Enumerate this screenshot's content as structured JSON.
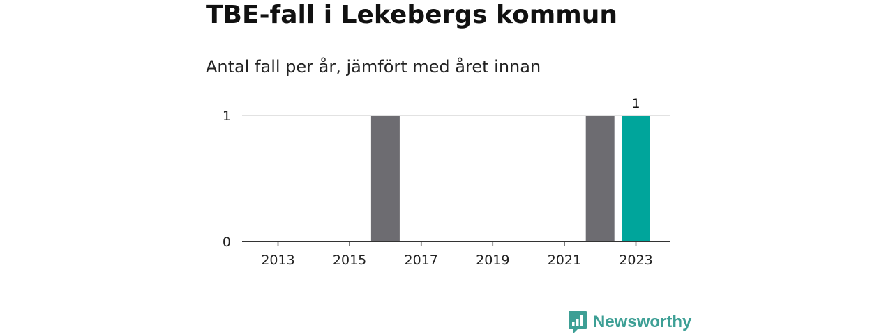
{
  "page": {
    "title": "TBE-fall i Lekebergs kommun",
    "subtitle": "Antal fall per år, jämfört med året innan"
  },
  "brand": {
    "name": "Newsworthy",
    "icon": "newsworthy-logo-icon",
    "color": "#3d9f95"
  },
  "chart_data": {
    "type": "bar",
    "title": "TBE-fall i Lekebergs kommun",
    "subtitle": "Antal fall per år, jämfört med året innan",
    "xlabel": "",
    "ylabel": "",
    "categories": [
      "2013",
      "2014",
      "2015",
      "2016",
      "2017",
      "2018",
      "2019",
      "2020",
      "2021",
      "2022",
      "2023"
    ],
    "values": [
      0,
      0,
      0,
      1,
      0,
      0,
      0,
      0,
      0,
      1,
      1
    ],
    "highlight_category": "2023",
    "x_tick_labels": [
      "2013",
      "2015",
      "2017",
      "2019",
      "2021",
      "2023"
    ],
    "y_ticks": [
      0,
      1
    ],
    "ylim": [
      0,
      1
    ],
    "data_labels": [
      {
        "category": "2023",
        "label": "1"
      }
    ],
    "colors": {
      "bar": "#6d6c71",
      "highlight": "#00a59b",
      "grid": "#d9d9d9",
      "axis": "#333333"
    },
    "grid": true,
    "legend": "none"
  }
}
